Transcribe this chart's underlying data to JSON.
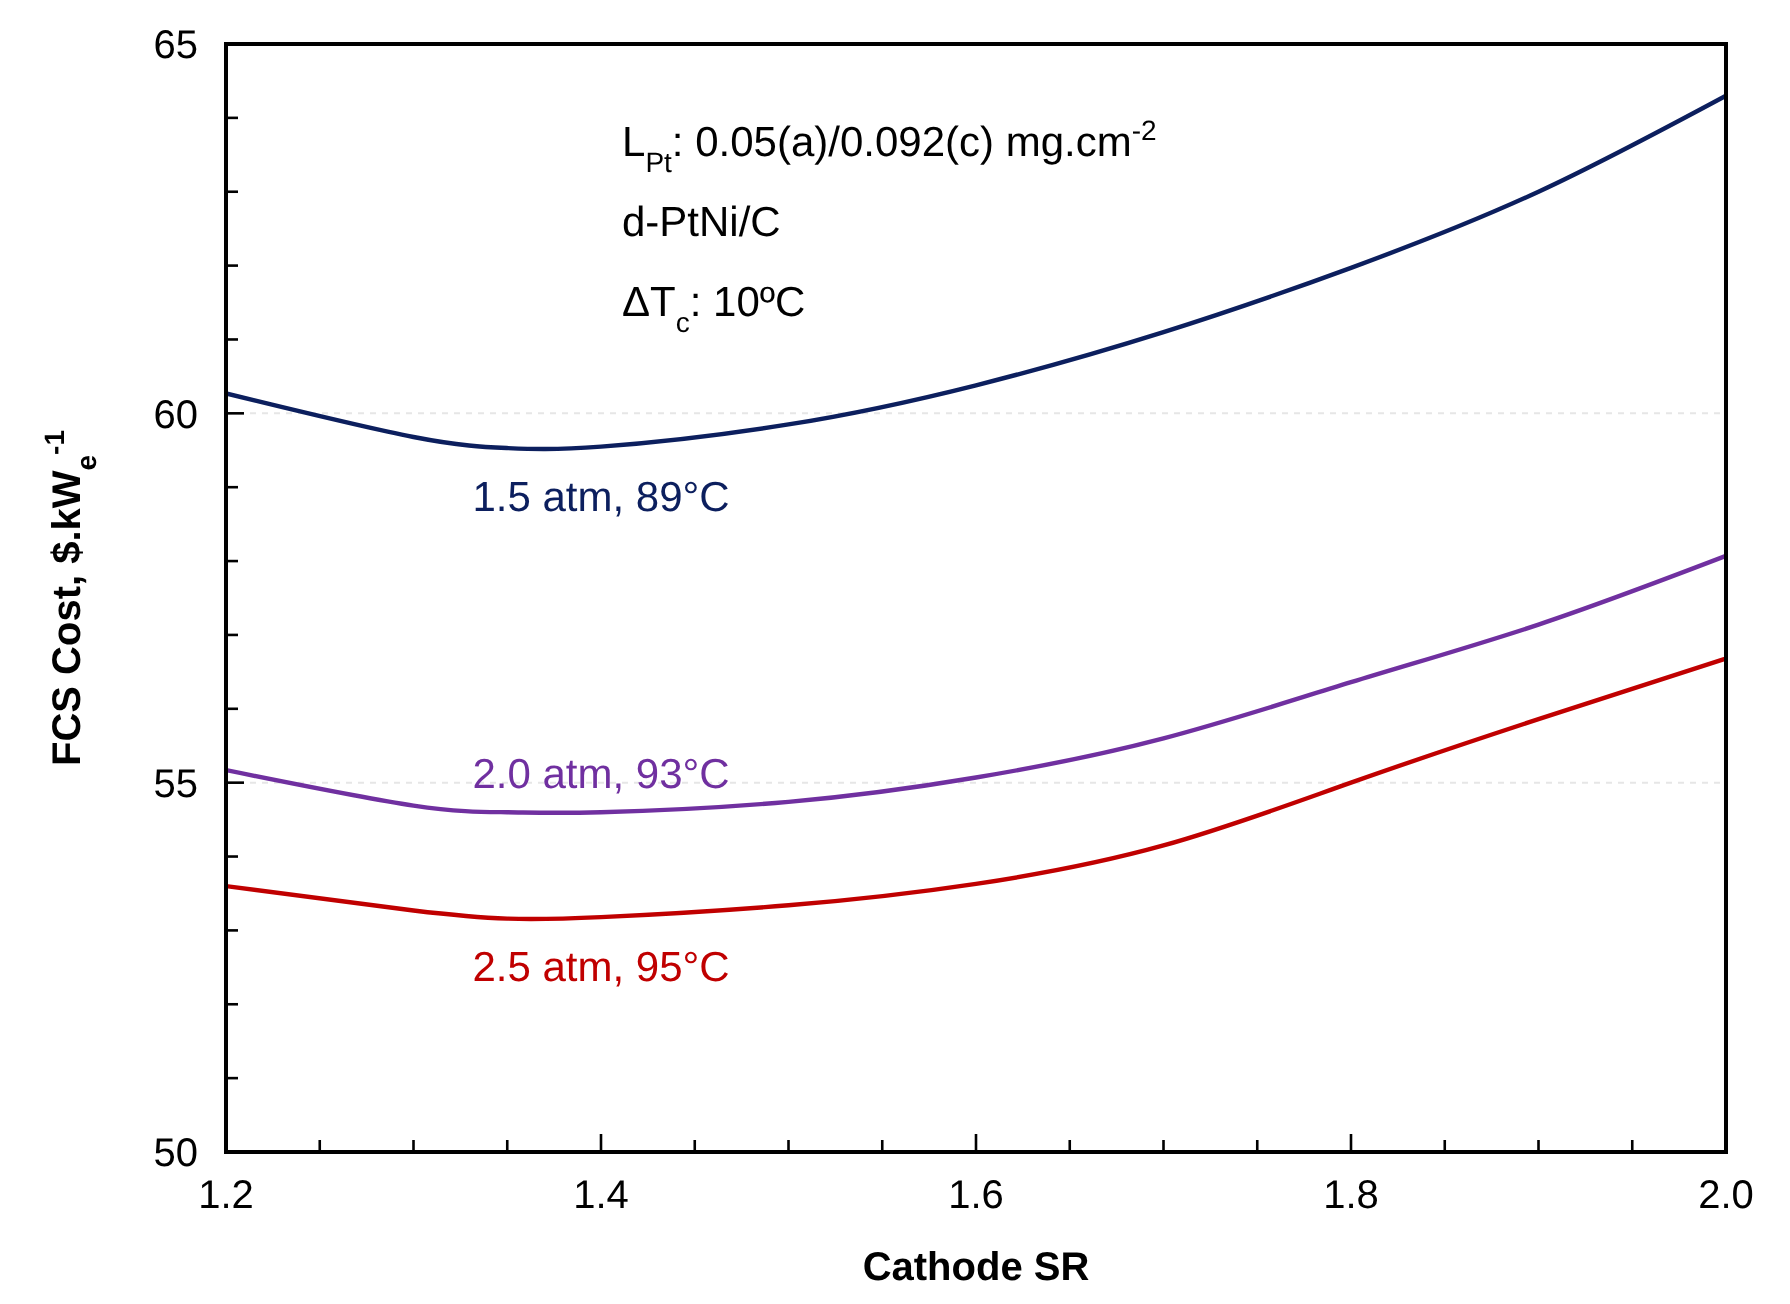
{
  "chart_data": {
    "type": "line",
    "xlabel": "Cathode SR",
    "ylabel": "FCS Cost, $.kW$_{e}$$^{-1}$",
    "x": [
      1.2,
      1.3,
      1.35,
      1.4,
      1.5,
      1.6,
      1.7,
      1.8,
      1.9,
      2.0
    ],
    "series": [
      {
        "name": "1.5 atm, 89°C",
        "color": "#0c1f5e",
        "values": [
          60.27,
          59.68,
          59.53,
          59.55,
          59.85,
          60.38,
          61.1,
          61.97,
          63.0,
          64.3
        ]
      },
      {
        "name": "2.0 atm, 93°C",
        "color": "#7030a0",
        "values": [
          55.17,
          54.69,
          54.6,
          54.6,
          54.74,
          55.07,
          55.6,
          56.36,
          57.14,
          58.07
        ]
      },
      {
        "name": "2.5 atm, 95°C",
        "color": "#c00000",
        "values": [
          53.6,
          53.27,
          53.16,
          53.18,
          53.34,
          53.63,
          54.15,
          55.0,
          55.86,
          56.68
        ]
      }
    ],
    "annotations": [
      "L$_{Pt}$: 0.05(a)/0.092(c) mg.cm$^{-2}$",
      "d-PtNi/C",
      "ΔT$_{c}$: 10ºC"
    ],
    "xlim": [
      1.2,
      2.0
    ],
    "xticks": [
      1.2,
      {
        "value": 1.25,
        "label": null
      },
      1.4,
      {
        "value": 1.3,
        "label": null
      },
      {
        "value": 1.35,
        "label": null
      },
      {
        "value": 1.45,
        "label": null
      },
      {
        "value": 1.5,
        "label": null
      },
      {
        "value": 1.55,
        "label": null
      },
      1.6,
      {
        "value": 1.65,
        "label": null
      },
      {
        "value": 1.7,
        "label": null
      },
      {
        "value": 1.75,
        "label": null
      },
      1.8,
      {
        "value": 1.85,
        "label": null
      },
      {
        "value": 1.9,
        "label": null
      },
      {
        "value": 1.95,
        "label": null
      },
      {
        "value": 2,
        "label": "2.0"
      }
    ],
    "ylim": [
      50,
      65
    ],
    "yticks": [
      50,
      {
        "value": 51,
        "label": null
      },
      {
        "value": 52,
        "label": null
      },
      {
        "value": 53,
        "label": null
      },
      {
        "value": 54,
        "label": null
      },
      55,
      {
        "value": 56,
        "label": null
      },
      {
        "value": 57,
        "label": null
      },
      {
        "value": 58,
        "label": null
      },
      {
        "value": 59,
        "label": null
      },
      60,
      {
        "value": 61,
        "label": null
      },
      {
        "value": 62,
        "label": null
      },
      {
        "value": 63,
        "label": null
      },
      {
        "value": 64,
        "label": null
      },
      65
    ],
    "grid": "y",
    "legend": false,
    "marker": "none",
    "line_style": "solid"
  }
}
